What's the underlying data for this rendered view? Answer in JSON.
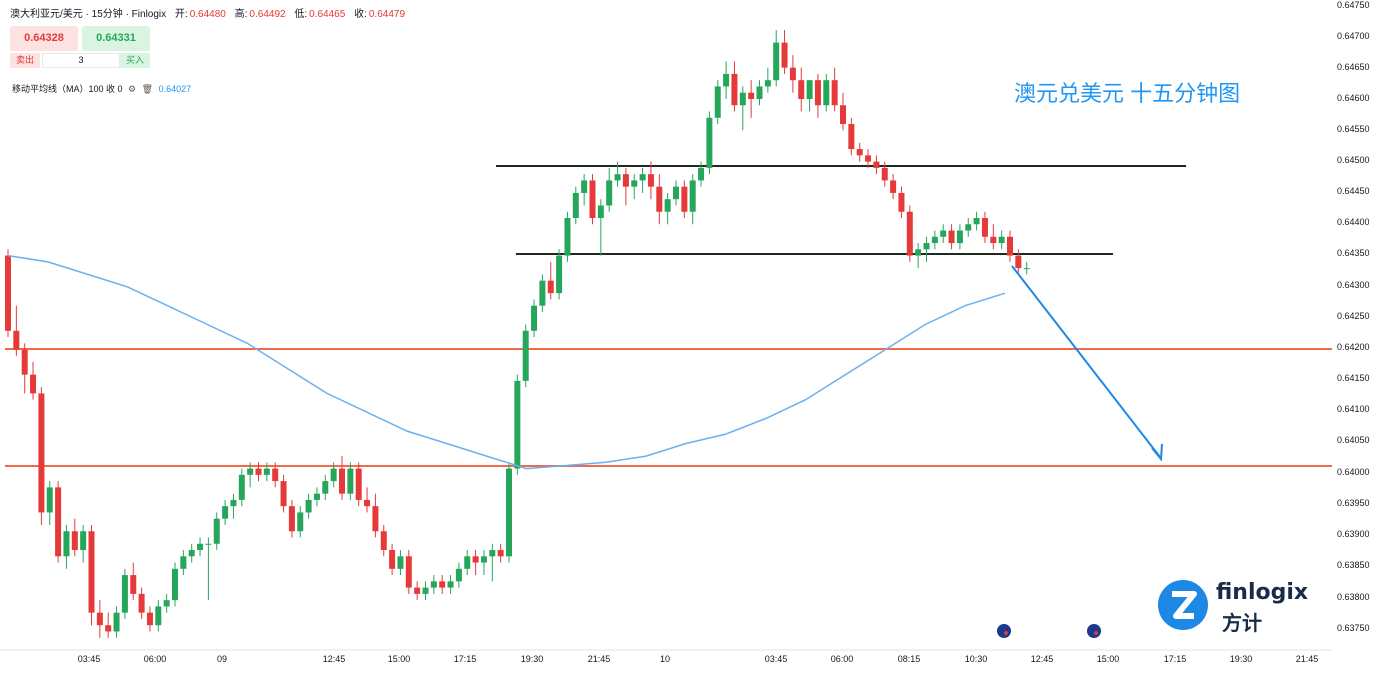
{
  "header": {
    "symbol": "澳大利亚元/美元 · 15分钟 · Finlogix",
    "open_label": "开:",
    "open": "0.64480",
    "high_label": "高:",
    "high": "0.64492",
    "low_label": "低:",
    "low": "0.64465",
    "close_label": "收:",
    "close": "0.64479"
  },
  "trade": {
    "sell_price": "0.64328",
    "buy_price": "0.64331",
    "sell_label": "卖出",
    "buy_label": "买入",
    "quantity": "3"
  },
  "indicator": {
    "label": "移动平均线（MA）100 收 0",
    "value": "0.64027"
  },
  "overlay_title": "澳元兑美元 十五分钟图",
  "logo": {
    "name": "finlogix",
    "sub": "方计"
  },
  "colors": {
    "up": "#26a65b",
    "down": "#e5393a",
    "ma": "#6ab0ef",
    "support": "#f06a4a",
    "resistance": "#1f2a1f",
    "arrow": "#1e88e5"
  },
  "chart_data": {
    "type": "candlestick",
    "ylim": [
      0.6373,
      0.6475
    ],
    "yticks": [
      "0.63750",
      "0.63800",
      "0.63850",
      "0.63900",
      "0.63950",
      "0.64000",
      "0.64050",
      "0.64100",
      "0.64150",
      "0.64200",
      "0.64250",
      "0.64300",
      "0.64350",
      "0.64400",
      "0.64450",
      "0.64500",
      "0.64550",
      "0.64600",
      "0.64650",
      "0.64700",
      "0.64750"
    ],
    "xticks": [
      "03:45",
      "06:00",
      "09",
      "12:45",
      "15:00",
      "17:15",
      "19:30",
      "21:45",
      "10",
      "03:45",
      "06:00",
      "08:15",
      "10:30",
      "12:45",
      "15:00",
      "17:15",
      "19:30",
      "21:45"
    ],
    "candles": [
      [
        0.6435,
        0.6436,
        0.6422,
        0.6423
      ],
      [
        0.6423,
        0.6427,
        0.6419,
        0.642
      ],
      [
        0.642,
        0.6421,
        0.6413,
        0.6416
      ],
      [
        0.6416,
        0.6418,
        0.6412,
        0.6413
      ],
      [
        0.6413,
        0.6414,
        0.6392,
        0.6394
      ],
      [
        0.6394,
        0.6399,
        0.6392,
        0.6398
      ],
      [
        0.6398,
        0.6399,
        0.6386,
        0.6387
      ],
      [
        0.6387,
        0.6392,
        0.6385,
        0.6391
      ],
      [
        0.6391,
        0.6393,
        0.6387,
        0.6388
      ],
      [
        0.6388,
        0.6392,
        0.6386,
        0.6391
      ],
      [
        0.6391,
        0.6392,
        0.6376,
        0.6378
      ],
      [
        0.6378,
        0.638,
        0.6374,
        0.6376
      ],
      [
        0.6376,
        0.6378,
        0.6374,
        0.6375
      ],
      [
        0.6375,
        0.6379,
        0.6374,
        0.6378
      ],
      [
        0.6378,
        0.6385,
        0.6377,
        0.6384
      ],
      [
        0.6384,
        0.6386,
        0.638,
        0.6381
      ],
      [
        0.6381,
        0.6382,
        0.6377,
        0.6378
      ],
      [
        0.6378,
        0.6379,
        0.6375,
        0.6376
      ],
      [
        0.6376,
        0.638,
        0.6375,
        0.6379
      ],
      [
        0.6379,
        0.6381,
        0.6378,
        0.638
      ],
      [
        0.638,
        0.6386,
        0.6379,
        0.6385
      ],
      [
        0.6385,
        0.6388,
        0.6384,
        0.6387
      ],
      [
        0.6387,
        0.6389,
        0.6386,
        0.6388
      ],
      [
        0.6388,
        0.639,
        0.6387,
        0.6389
      ],
      [
        0.6389,
        0.639,
        0.638,
        0.6389
      ],
      [
        0.6389,
        0.6394,
        0.6388,
        0.6393
      ],
      [
        0.6393,
        0.6396,
        0.6392,
        0.6395
      ],
      [
        0.6395,
        0.6397,
        0.6393,
        0.6396
      ],
      [
        0.6396,
        0.6401,
        0.6395,
        0.64
      ],
      [
        0.64,
        0.6402,
        0.6398,
        0.6401
      ],
      [
        0.6401,
        0.6402,
        0.6399,
        0.64
      ],
      [
        0.64,
        0.6402,
        0.6399,
        0.6401
      ],
      [
        0.6401,
        0.6402,
        0.6398,
        0.6399
      ],
      [
        0.6399,
        0.64,
        0.6394,
        0.6395
      ],
      [
        0.6395,
        0.6396,
        0.639,
        0.6391
      ],
      [
        0.6391,
        0.6395,
        0.639,
        0.6394
      ],
      [
        0.6394,
        0.6397,
        0.6393,
        0.6396
      ],
      [
        0.6396,
        0.6398,
        0.6395,
        0.6397
      ],
      [
        0.6397,
        0.64,
        0.6396,
        0.6399
      ],
      [
        0.6399,
        0.6402,
        0.6398,
        0.6401
      ],
      [
        0.6401,
        0.6403,
        0.6396,
        0.6397
      ],
      [
        0.6397,
        0.6402,
        0.6396,
        0.6401
      ],
      [
        0.6401,
        0.6402,
        0.6395,
        0.6396
      ],
      [
        0.6396,
        0.6398,
        0.6394,
        0.6395
      ],
      [
        0.6395,
        0.6397,
        0.639,
        0.6391
      ],
      [
        0.6391,
        0.6392,
        0.6387,
        0.6388
      ],
      [
        0.6388,
        0.6389,
        0.6384,
        0.6385
      ],
      [
        0.6385,
        0.6388,
        0.6384,
        0.6387
      ],
      [
        0.6387,
        0.6388,
        0.6381,
        0.6382
      ],
      [
        0.6382,
        0.6383,
        0.638,
        0.6381
      ],
      [
        0.6381,
        0.6383,
        0.638,
        0.6382
      ],
      [
        0.6382,
        0.6384,
        0.6381,
        0.6383
      ],
      [
        0.6383,
        0.6384,
        0.6381,
        0.6382
      ],
      [
        0.6382,
        0.6384,
        0.6381,
        0.6383
      ],
      [
        0.6383,
        0.6386,
        0.6382,
        0.6385
      ],
      [
        0.6385,
        0.6388,
        0.6384,
        0.6387
      ],
      [
        0.6387,
        0.6388,
        0.6384,
        0.6386
      ],
      [
        0.6386,
        0.6388,
        0.6384,
        0.6387
      ],
      [
        0.6387,
        0.6389,
        0.6383,
        0.6388
      ],
      [
        0.6388,
        0.6389,
        0.6386,
        0.6387
      ],
      [
        0.6387,
        0.6402,
        0.6386,
        0.6401
      ],
      [
        0.6401,
        0.6416,
        0.64,
        0.6415
      ],
      [
        0.6415,
        0.6424,
        0.6414,
        0.6423
      ],
      [
        0.6423,
        0.6428,
        0.6422,
        0.6427
      ],
      [
        0.6427,
        0.6432,
        0.6426,
        0.6431
      ],
      [
        0.6431,
        0.6434,
        0.6428,
        0.6429
      ],
      [
        0.6429,
        0.6436,
        0.6428,
        0.6435
      ],
      [
        0.6435,
        0.6442,
        0.6434,
        0.6441
      ],
      [
        0.6441,
        0.6446,
        0.644,
        0.6445
      ],
      [
        0.6445,
        0.6448,
        0.6443,
        0.6447
      ],
      [
        0.6447,
        0.6448,
        0.644,
        0.6441
      ],
      [
        0.6441,
        0.6444,
        0.6435,
        0.6443
      ],
      [
        0.6443,
        0.6449,
        0.6442,
        0.6447
      ],
      [
        0.6447,
        0.645,
        0.6446,
        0.6448
      ],
      [
        0.6448,
        0.6449,
        0.6443,
        0.6446
      ],
      [
        0.6446,
        0.6448,
        0.6444,
        0.6447
      ],
      [
        0.6447,
        0.6449,
        0.6445,
        0.6448
      ],
      [
        0.6448,
        0.645,
        0.6444,
        0.6446
      ],
      [
        0.6446,
        0.6448,
        0.644,
        0.6442
      ],
      [
        0.6442,
        0.6445,
        0.644,
        0.6444
      ],
      [
        0.6444,
        0.6447,
        0.6443,
        0.6446
      ],
      [
        0.6446,
        0.6447,
        0.6441,
        0.6442
      ],
      [
        0.6442,
        0.6448,
        0.644,
        0.6447
      ],
      [
        0.6447,
        0.645,
        0.6446,
        0.6449
      ],
      [
        0.6449,
        0.6458,
        0.6448,
        0.6457
      ],
      [
        0.6457,
        0.6463,
        0.6456,
        0.6462
      ],
      [
        0.6462,
        0.6466,
        0.646,
        0.6464
      ],
      [
        0.6464,
        0.6466,
        0.6458,
        0.6459
      ],
      [
        0.6459,
        0.6462,
        0.6455,
        0.6461
      ],
      [
        0.6461,
        0.6463,
        0.6457,
        0.646
      ],
      [
        0.646,
        0.6463,
        0.6459,
        0.6462
      ],
      [
        0.6462,
        0.6465,
        0.6461,
        0.6463
      ],
      [
        0.6463,
        0.6471,
        0.6462,
        0.6469
      ],
      [
        0.6469,
        0.6471,
        0.6464,
        0.6465
      ],
      [
        0.6465,
        0.6467,
        0.6461,
        0.6463
      ],
      [
        0.6463,
        0.6465,
        0.6458,
        0.646
      ],
      [
        0.646,
        0.6463,
        0.6458,
        0.6463
      ],
      [
        0.6463,
        0.6464,
        0.6457,
        0.6459
      ],
      [
        0.6459,
        0.6464,
        0.6458,
        0.6463
      ],
      [
        0.6463,
        0.6465,
        0.6458,
        0.6459
      ],
      [
        0.6459,
        0.6461,
        0.6455,
        0.6456
      ],
      [
        0.6456,
        0.6457,
        0.6451,
        0.6452
      ],
      [
        0.6452,
        0.6453,
        0.645,
        0.6451
      ],
      [
        0.6451,
        0.6452,
        0.6449,
        0.645
      ],
      [
        0.645,
        0.6451,
        0.6448,
        0.6449
      ],
      [
        0.6449,
        0.645,
        0.6446,
        0.6447
      ],
      [
        0.6447,
        0.6448,
        0.6444,
        0.6445
      ],
      [
        0.6445,
        0.6446,
        0.6441,
        0.6442
      ],
      [
        0.6442,
        0.6443,
        0.6434,
        0.6435
      ],
      [
        0.6435,
        0.6437,
        0.6433,
        0.6436
      ],
      [
        0.6436,
        0.6438,
        0.6434,
        0.6437
      ],
      [
        0.6437,
        0.6439,
        0.6436,
        0.6438
      ],
      [
        0.6438,
        0.644,
        0.6437,
        0.6439
      ],
      [
        0.6439,
        0.644,
        0.6436,
        0.6437
      ],
      [
        0.6437,
        0.644,
        0.6436,
        0.6439
      ],
      [
        0.6439,
        0.6441,
        0.6438,
        0.644
      ],
      [
        0.644,
        0.6442,
        0.6439,
        0.6441
      ],
      [
        0.6441,
        0.6442,
        0.6437,
        0.6438
      ],
      [
        0.6438,
        0.644,
        0.6436,
        0.6437
      ],
      [
        0.6437,
        0.6439,
        0.6436,
        0.6438
      ],
      [
        0.6438,
        0.6439,
        0.6434,
        0.6435
      ],
      [
        0.6435,
        0.6436,
        0.6432,
        0.6433
      ],
      [
        0.6433,
        0.6434,
        0.6432,
        0.6433
      ]
    ],
    "ma100": [
      0.6435,
      0.6434,
      0.6432,
      0.643,
      0.6427,
      0.6424,
      0.6421,
      0.6417,
      0.6413,
      0.641,
      0.6407,
      0.6405,
      0.6403,
      0.6401,
      0.64015,
      0.6402,
      0.6403,
      0.6405,
      0.64065,
      0.6409,
      0.6412,
      0.6416,
      0.642,
      0.6424,
      0.6427,
      0.6429
    ],
    "levels": [
      {
        "price": 0.6449,
        "role": "resistance",
        "from": 0.37,
        "to": 0.89
      },
      {
        "price": 0.64355,
        "role": "resistance",
        "from": 0.385,
        "to": 0.835
      },
      {
        "price": 0.642,
        "role": "support",
        "from": 0.0,
        "to": 1.0
      },
      {
        "price": 0.6401,
        "role": "support",
        "from": 0.0,
        "to": 1.0
      }
    ]
  }
}
